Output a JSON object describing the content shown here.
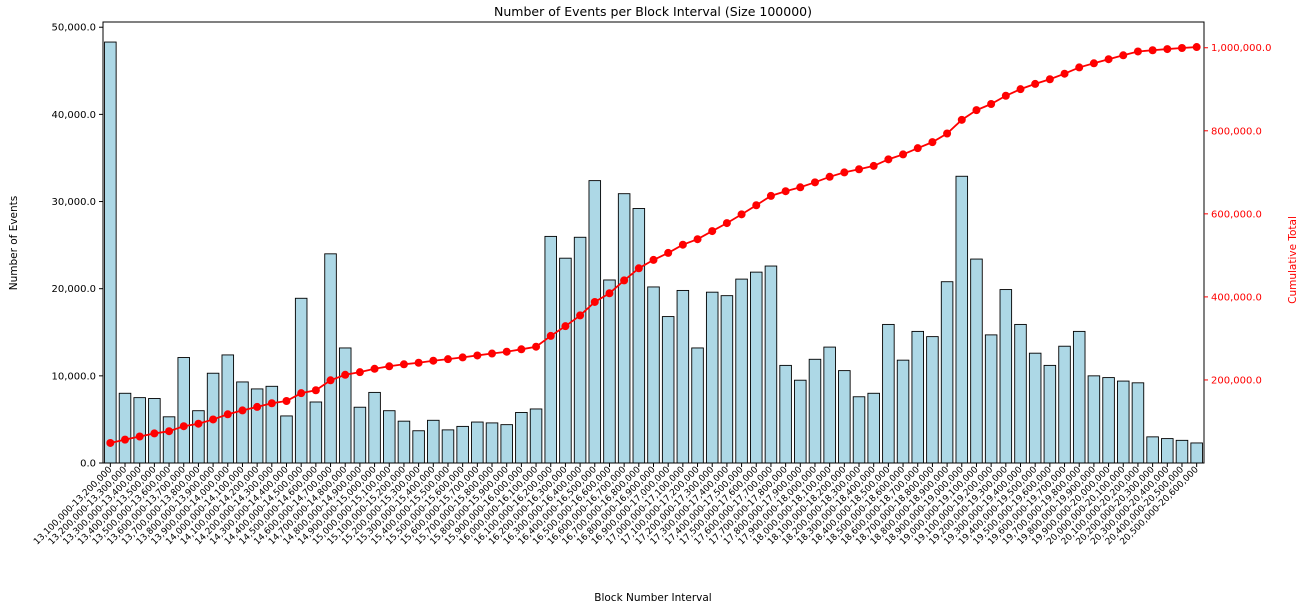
{
  "chart_data": {
    "type": "bar",
    "title": "Number of Events per Block Interval (Size 100000)",
    "xlabel": "Block Number Interval",
    "ylabel_left": "Number of Events",
    "ylabel_right": "Cumulative Total",
    "grid": false,
    "legend": "none",
    "colors": {
      "bar_fill": "#ADD8E6",
      "bar_edge": "#000000",
      "line": "#FF0000",
      "right_axis_text": "#FF0000",
      "left_axis_text": "#000000",
      "background": "#FFFFFF"
    },
    "left_axis": {
      "min": 0,
      "max": 50600,
      "tick_values": [
        0,
        10000,
        20000,
        30000,
        40000,
        50000
      ],
      "tick_labels": [
        "0.0",
        "10,000.0",
        "20,000.0",
        "30,000.0",
        "40,000.0",
        "50,000.0"
      ]
    },
    "right_axis": {
      "min": 0,
      "max": 1062000,
      "tick_values": [
        200000,
        400000,
        600000,
        800000,
        1000000
      ],
      "tick_labels": [
        "200,000.0",
        "400,000.0",
        "600,000.0",
        "800,000.0",
        "1,000,000.0"
      ]
    },
    "categories": [
      "13,100,000-13,200,000",
      "13,200,000-13,300,000",
      "13,300,000-13,400,000",
      "13,400,000-13,500,000",
      "13,500,000-13,600,000",
      "13,600,000-13,700,000",
      "13,700,000-13,800,000",
      "13,800,000-13,900,000",
      "13,900,000-14,000,000",
      "14,000,000-14,100,000",
      "14,100,000-14,200,000",
      "14,200,000-14,300,000",
      "14,300,000-14,400,000",
      "14,400,000-14,500,000",
      "14,500,000-14,600,000",
      "14,600,000-14,700,000",
      "14,700,000-14,800,000",
      "14,800,000-14,900,000",
      "14,900,000-15,000,000",
      "15,000,000-15,100,000",
      "15,100,000-15,200,000",
      "15,200,000-15,300,000",
      "15,300,000-15,400,000",
      "15,400,000-15,500,000",
      "15,500,000-15,600,000",
      "15,600,000-15,700,000",
      "15,700,000-15,800,000",
      "15,800,000-15,900,000",
      "15,900,000-16,000,000",
      "16,000,000-16,100,000",
      "16,100,000-16,200,000",
      "16,200,000-16,300,000",
      "16,300,000-16,400,000",
      "16,400,000-16,500,000",
      "16,500,000-16,600,000",
      "16,600,000-16,700,000",
      "16,700,000-16,800,000",
      "16,800,000-16,900,000",
      "16,900,000-17,000,000",
      "17,000,000-17,100,000",
      "17,100,000-17,200,000",
      "17,200,000-17,300,000",
      "17,300,000-17,400,000",
      "17,400,000-17,500,000",
      "17,500,000-17,600,000",
      "17,600,000-17,700,000",
      "17,700,000-17,800,000",
      "17,800,000-17,900,000",
      "17,900,000-18,000,000",
      "18,000,000-18,100,000",
      "18,100,000-18,200,000",
      "18,200,000-18,300,000",
      "18,300,000-18,400,000",
      "18,400,000-18,500,000",
      "18,500,000-18,600,000",
      "18,600,000-18,700,000",
      "18,700,000-18,800,000",
      "18,800,000-18,900,000",
      "18,900,000-19,000,000",
      "19,000,000-19,100,000",
      "19,100,000-19,200,000",
      "19,200,000-19,300,000",
      "19,300,000-19,400,000",
      "19,400,000-19,500,000",
      "19,500,000-19,600,000",
      "19,600,000-19,700,000",
      "19,700,000-19,800,000",
      "19,800,000-19,900,000",
      "19,900,000-20,000,000",
      "20,000,000-20,100,000",
      "20,100,000-20,200,000",
      "20,200,000-20,300,000",
      "20,300,000-20,400,000",
      "20,400,000-20,500,000",
      "20,500,000-20,600,000"
    ],
    "series": [
      {
        "name": "Events per interval",
        "render": "bar",
        "axis": "left",
        "color": "#ADD8E6",
        "values": [
          48300,
          8000,
          7500,
          7400,
          5300,
          12100,
          6000,
          10300,
          12400,
          9300,
          8500,
          8800,
          5400,
          18900,
          7000,
          24000,
          13200,
          6400,
          8100,
          6000,
          4800,
          3700,
          4900,
          3800,
          4200,
          4700,
          4600,
          4400,
          5800,
          6200,
          26000,
          23500,
          25900,
          32400,
          21000,
          30900,
          29200,
          20200,
          16800,
          19800,
          13200,
          19600,
          19200,
          21100,
          21900,
          22600,
          11200,
          9500,
          11900,
          13300,
          10600,
          7600,
          8000,
          15900,
          11800,
          15100,
          14500,
          20800,
          32900,
          23400,
          14700,
          19900,
          15900,
          12600,
          11200,
          13400,
          15100,
          10000,
          9800,
          9400,
          9200,
          3000,
          2800,
          2600,
          2300
        ]
      },
      {
        "name": "Cumulative Total",
        "render": "line",
        "axis": "right",
        "color": "#FF0000",
        "values": [
          48300,
          56300,
          63800,
          71200,
          76500,
          88600,
          94600,
          104900,
          117300,
          126600,
          135100,
          143900,
          149300,
          168200,
          175200,
          199200,
          212400,
          218800,
          226900,
          232900,
          237700,
          241400,
          246300,
          250100,
          254300,
          259000,
          263600,
          268000,
          273800,
          280000,
          306000,
          329500,
          355400,
          387800,
          408800,
          439700,
          468900,
          489100,
          505900,
          525700,
          538900,
          558500,
          577700,
          598800,
          620700,
          643300,
          654500,
          664000,
          675900,
          689200,
          699800,
          707400,
          715400,
          731300,
          743100,
          758200,
          772700,
          793500,
          826400,
          849800,
          864500,
          884400,
          900300,
          912900,
          924100,
          937500,
          952600,
          962600,
          972400,
          981800,
          991000,
          994000,
          996800,
          999400,
          1001700
        ]
      }
    ]
  }
}
